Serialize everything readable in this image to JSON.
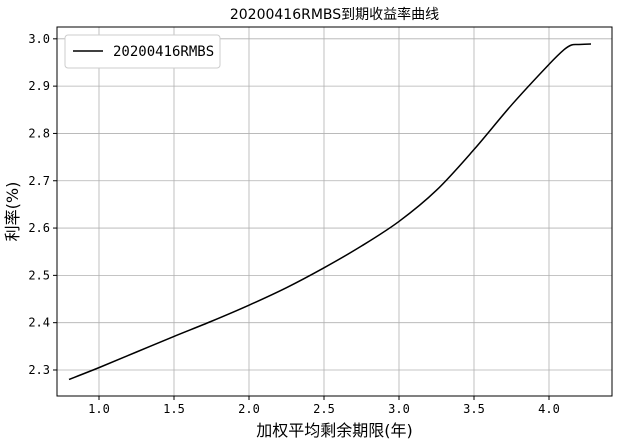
{
  "chart_data": {
    "type": "line",
    "title": "20200416RMBS到期收益率曲线",
    "xlabel": "加权平均剩余期限(年)",
    "ylabel": "利率(%)",
    "xlim": [
      0.72,
      4.42
    ],
    "ylim": [
      2.245,
      3.025
    ],
    "xticks": [
      "1.0",
      "1.5",
      "2.0",
      "2.5",
      "3.0",
      "3.5",
      "4.0"
    ],
    "xtick_values": [
      1.0,
      1.5,
      2.0,
      2.5,
      3.0,
      3.5,
      4.0
    ],
    "yticks": [
      "2.3",
      "2.4",
      "2.5",
      "2.6",
      "2.7",
      "2.8",
      "2.9",
      "3.0"
    ],
    "ytick_values": [
      2.3,
      2.4,
      2.5,
      2.6,
      2.7,
      2.8,
      2.9,
      3.0
    ],
    "grid": true,
    "legend_position": "top-left",
    "series": [
      {
        "name": "20200416RMBS",
        "color": "#000000",
        "x": [
          0.8,
          1.0,
          1.25,
          1.5,
          1.75,
          2.0,
          2.25,
          2.5,
          2.75,
          3.0,
          3.25,
          3.5,
          3.75,
          4.0,
          4.1,
          4.15,
          4.2,
          4.28
        ],
        "y": [
          2.28,
          2.305,
          2.338,
          2.371,
          2.403,
          2.437,
          2.474,
          2.516,
          2.562,
          2.614,
          2.68,
          2.766,
          2.86,
          2.946,
          2.977,
          2.987,
          2.988,
          2.989
        ]
      }
    ]
  }
}
